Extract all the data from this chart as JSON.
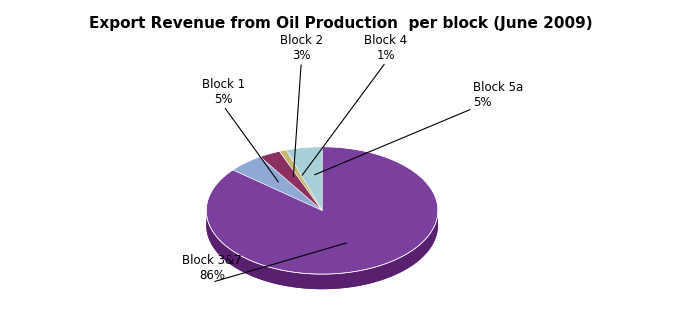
{
  "title": "Export Revenue from Oil Production  per block (June 2009)",
  "slices": [
    86,
    5,
    3,
    1,
    5
  ],
  "labels": [
    "Block 3&7",
    "Block 1",
    "Block 2",
    "Block 4",
    "Block 5a"
  ],
  "pcts": [
    "86%",
    "5%",
    "3%",
    "1%",
    "5%"
  ],
  "colors_top": [
    "#7B3F9E",
    "#8FA8D4",
    "#8B3060",
    "#C8B870",
    "#A8D0D8"
  ],
  "colors_side": [
    "#5A2070",
    "#6A80B0",
    "#6A2048",
    "#A89850",
    "#88B0B8"
  ],
  "color_gray_side": "#7A8080",
  "startangle": 90,
  "title_fontsize": 11,
  "label_fontsize": 8.5,
  "background": "#ffffff"
}
